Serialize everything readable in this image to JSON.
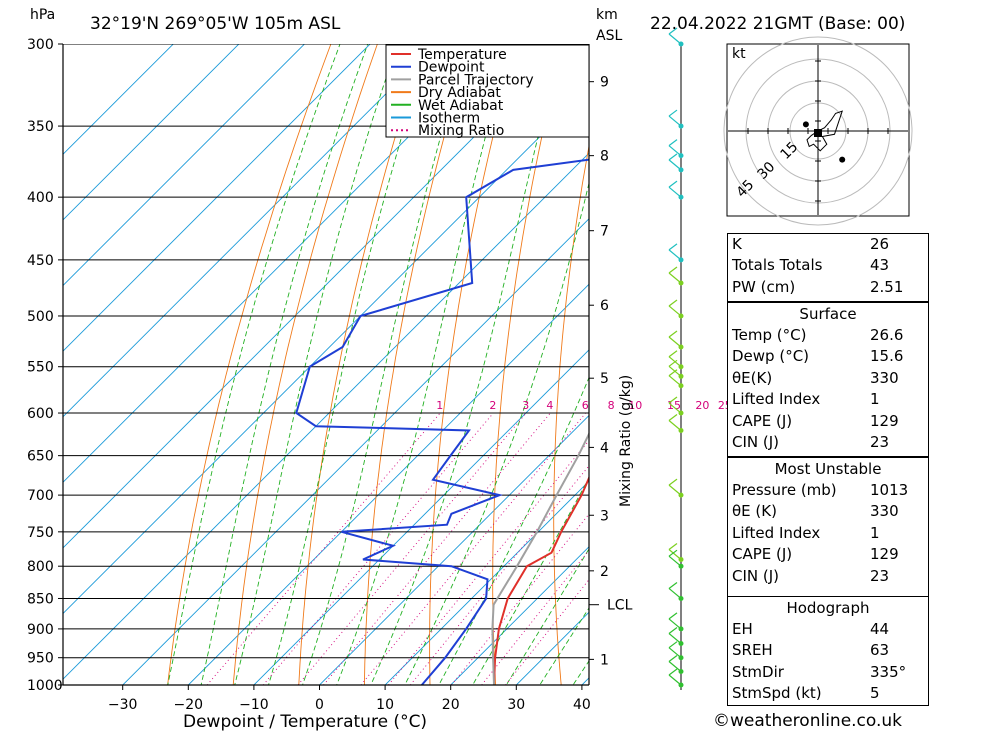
{
  "header": {
    "pressure_unit": "hPa",
    "location": "32°19'N  269°05'W  105m  ASL",
    "height_unit": "km",
    "height_unit_sub": "ASL",
    "datetime": "22.04.2022  21GMT  (Base: 00)"
  },
  "chart_data": {
    "type": "line",
    "subtype": "skew-T log-P",
    "xlabel": "Dewpoint / Temperature (°C)",
    "ylabel": "hPa",
    "secondary_ylabel": "Mixing Ratio (g/kg)",
    "x_ticks": [
      -30,
      -20,
      -10,
      0,
      10,
      20,
      30,
      40
    ],
    "x_tick_labels": [
      "−30",
      "−20",
      "−10",
      "0",
      "10",
      "20",
      "30",
      "40"
    ],
    "y_ticks": [
      300,
      350,
      400,
      450,
      500,
      550,
      600,
      650,
      700,
      750,
      800,
      850,
      900,
      950,
      1000
    ],
    "y_scale": "log",
    "ylim": [
      1000,
      300
    ],
    "height_ticks": [
      {
        "p": 953,
        "label": "1"
      },
      {
        "p": 807,
        "label": "2"
      },
      {
        "p": 727,
        "label": "3"
      },
      {
        "p": 640,
        "label": "4"
      },
      {
        "p": 562,
        "label": "5"
      },
      {
        "p": 490,
        "label": "6"
      },
      {
        "p": 426,
        "label": "7"
      },
      {
        "p": 370,
        "label": "8"
      },
      {
        "p": 322,
        "label": "9"
      }
    ],
    "lcl": {
      "p": 860,
      "label": "LCL"
    },
    "mixing_ratio_labels": [
      "1",
      "2",
      "3",
      "4",
      "6",
      "8",
      "10",
      "15",
      "20",
      "25"
    ],
    "mixing_ratio_values": [
      1,
      2,
      3,
      4,
      6,
      8,
      10,
      15,
      20,
      25
    ],
    "legend": {
      "placement": "top-right",
      "entries": [
        {
          "name": "Temperature",
          "color": "#e0302a",
          "style": "solid"
        },
        {
          "name": "Dewpoint",
          "color": "#1f3fd4",
          "style": "solid"
        },
        {
          "name": "Parcel Trajectory",
          "color": "#a0a0a0",
          "style": "solid"
        },
        {
          "name": "Dry Adiabat",
          "color": "#f07a1a",
          "style": "solid"
        },
        {
          "name": "Wet Adiabat",
          "color": "#22b022",
          "style": "solid"
        },
        {
          "name": "Isotherm",
          "color": "#1a9ad9",
          "style": "solid"
        },
        {
          "name": "Mixing Ratio",
          "color": "#d4007a",
          "style": "dotted"
        }
      ]
    },
    "series": [
      {
        "name": "Temperature",
        "color": "#e0302a",
        "points": [
          [
            1000,
            26.6
          ],
          [
            950,
            22.6
          ],
          [
            900,
            18.8
          ],
          [
            850,
            15.5
          ],
          [
            800,
            13.5
          ],
          [
            780,
            15.2
          ],
          [
            750,
            13.5
          ],
          [
            700,
            11.0
          ],
          [
            650,
            7.6
          ],
          [
            630,
            4.8
          ],
          [
            620,
            4.7
          ],
          [
            600,
            4.9
          ],
          [
            550,
            2.0
          ],
          [
            500,
            -2.2
          ],
          [
            450,
            -8.0
          ],
          [
            400,
            -16.0
          ],
          [
            380,
            -20.0
          ],
          [
            350,
            -27.0
          ],
          [
            300,
            -37.5
          ]
        ]
      },
      {
        "name": "Dewpoint",
        "color": "#1f3fd4",
        "points": [
          [
            1000,
            15.6
          ],
          [
            950,
            15.0
          ],
          [
            900,
            13.8
          ],
          [
            850,
            12.2
          ],
          [
            820,
            9.5
          ],
          [
            800,
            2.0
          ],
          [
            790,
            -12.5
          ],
          [
            770,
            -10.0
          ],
          [
            750,
            -20.0
          ],
          [
            740,
            -5.0
          ],
          [
            725,
            -6.0
          ],
          [
            700,
            -1.5
          ],
          [
            680,
            -14.0
          ],
          [
            650,
            -15.0
          ],
          [
            620,
            -16.0
          ],
          [
            615,
            -40.0
          ],
          [
            600,
            -45.0
          ],
          [
            550,
            -50.0
          ],
          [
            530,
            -48.0
          ],
          [
            500,
            -50.0
          ],
          [
            470,
            -38.0
          ],
          [
            400,
            -52.0
          ],
          [
            380,
            -49.0
          ],
          [
            360,
            -21.0
          ],
          [
            350,
            -23.0
          ],
          [
            340,
            -37.0
          ],
          [
            320,
            -30.0
          ],
          [
            310,
            -33.0
          ],
          [
            300,
            -35.0
          ]
        ]
      },
      {
        "name": "Parcel Trajectory",
        "color": "#a0a0a0",
        "points": [
          [
            1000,
            26.6
          ],
          [
            950,
            22.3
          ],
          [
            900,
            17.8
          ],
          [
            860,
            14.3
          ],
          [
            800,
            12.0
          ],
          [
            750,
            9.8
          ],
          [
            700,
            7.2
          ],
          [
            650,
            4.5
          ],
          [
            600,
            1.2
          ],
          [
            550,
            -2.3
          ],
          [
            500,
            -6.2
          ],
          [
            450,
            -10.6
          ],
          [
            400,
            -16.2
          ],
          [
            350,
            -23.5
          ],
          [
            300,
            -32.6
          ]
        ]
      }
    ],
    "hodograph_unit": "kt",
    "hodograph_rings": [
      "15",
      "30",
      "45"
    ],
    "hodograph_points": [
      [
        0,
        0
      ],
      [
        2,
        -1
      ],
      [
        6,
        -3
      ],
      [
        12,
        -10
      ],
      [
        16,
        -16
      ],
      [
        22,
        -18
      ],
      [
        15,
        3
      ],
      [
        4,
        5
      ],
      [
        8,
        12
      ],
      [
        2,
        18
      ],
      [
        -4,
        12
      ],
      [
        -8,
        14
      ],
      [
        -10,
        8
      ],
      [
        -6,
        4
      ],
      [
        0,
        0
      ]
    ],
    "wind_barbs_levels": [
      300,
      350,
      370,
      380,
      400,
      450,
      470,
      500,
      530,
      550,
      560,
      570,
      600,
      620,
      700,
      790,
      800,
      850,
      900,
      925,
      950,
      975,
      1000
    ]
  },
  "indices1": [
    {
      "label": "K",
      "value": "26"
    },
    {
      "label": "Totals Totals",
      "value": "43"
    },
    {
      "label": "PW (cm)",
      "value": "2.51"
    }
  ],
  "surface": {
    "title": "Surface",
    "rows": [
      {
        "label": "Temp (°C)",
        "value": "26.6"
      },
      {
        "label": "Dewp (°C)",
        "value": "15.6"
      },
      {
        "label": "θE(K)",
        "value": "330"
      },
      {
        "label": "Lifted Index",
        "value": "1"
      },
      {
        "label": "CAPE (J)",
        "value": "129"
      },
      {
        "label": "CIN (J)",
        "value": "23"
      }
    ]
  },
  "most_unstable": {
    "title": "Most Unstable",
    "rows": [
      {
        "label": "Pressure (mb)",
        "value": "1013"
      },
      {
        "label": "θE (K)",
        "value": "330"
      },
      {
        "label": "Lifted Index",
        "value": "1"
      },
      {
        "label": "CAPE (J)",
        "value": "129"
      },
      {
        "label": "CIN (J)",
        "value": "23"
      }
    ]
  },
  "hodograph_table": {
    "title": "Hodograph",
    "rows": [
      {
        "label": "EH",
        "value": "44"
      },
      {
        "label": "SREH",
        "value": "63"
      },
      {
        "label": "StmDir",
        "value": "335°"
      },
      {
        "label": "StmSpd (kt)",
        "value": "5"
      }
    ]
  },
  "footer": {
    "credit": "©weatheronline.co.uk"
  }
}
